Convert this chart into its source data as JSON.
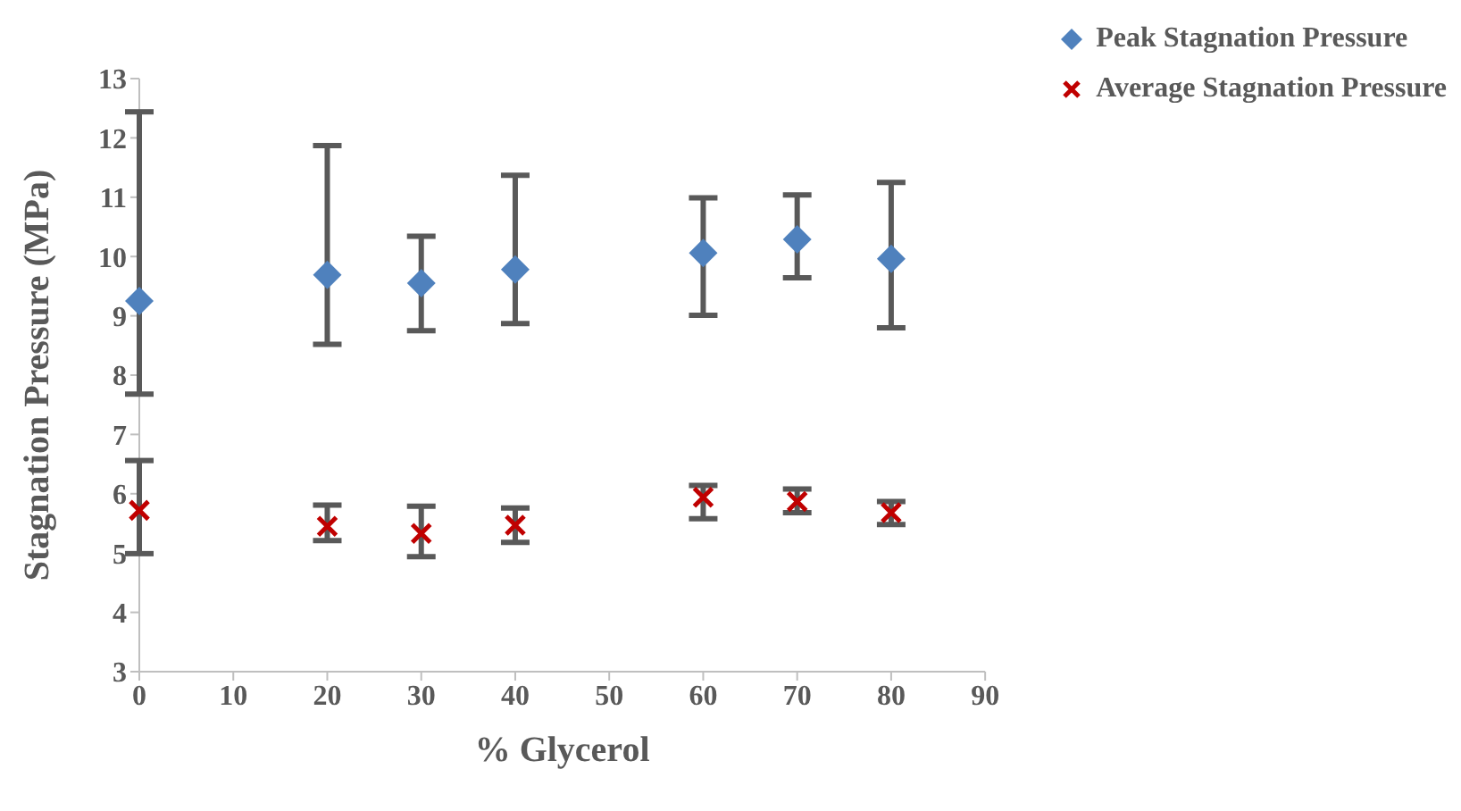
{
  "chart_data": {
    "type": "scatter",
    "xlabel": "% Glycerol",
    "ylabel": "Stagnation Pressure (MPa)",
    "xlim": [
      0,
      90
    ],
    "xticks": [
      0,
      10,
      20,
      30,
      40,
      50,
      60,
      70,
      80,
      90
    ],
    "ylim": [
      3,
      13
    ],
    "yticks": [
      3,
      4,
      5,
      6,
      7,
      8,
      9,
      10,
      11,
      12,
      13
    ],
    "grid": false,
    "legend": "top right",
    "series": [
      {
        "name": "Peak Stagnation Pressure",
        "color": "#4f81bd",
        "marker": "diamond",
        "x": [
          0,
          20,
          30,
          40,
          60,
          70,
          80
        ],
        "values": [
          9.25,
          9.69,
          9.55,
          9.78,
          10.06,
          10.29,
          9.96
        ],
        "errors": [
          [
            7.68,
            12.44
          ],
          [
            8.52,
            11.87
          ],
          [
            8.75,
            10.34
          ],
          [
            8.87,
            11.37
          ],
          [
            9.01,
            10.99
          ],
          [
            9.64,
            11.04
          ],
          [
            8.8,
            11.25
          ]
        ]
      },
      {
        "name": "Average Stagnation Pressure",
        "color": "#c00000",
        "marker": "cross",
        "x": [
          0,
          20,
          30,
          40,
          60,
          70,
          80
        ],
        "values": [
          5.72,
          5.45,
          5.33,
          5.47,
          5.94,
          5.87,
          5.68
        ],
        "errors": [
          [
            4.99,
            6.56
          ],
          [
            5.21,
            5.81
          ],
          [
            4.94,
            5.79
          ],
          [
            5.18,
            5.76
          ],
          [
            5.58,
            6.14
          ],
          [
            5.68,
            6.08
          ],
          [
            5.48,
            5.87
          ]
        ]
      }
    ]
  }
}
